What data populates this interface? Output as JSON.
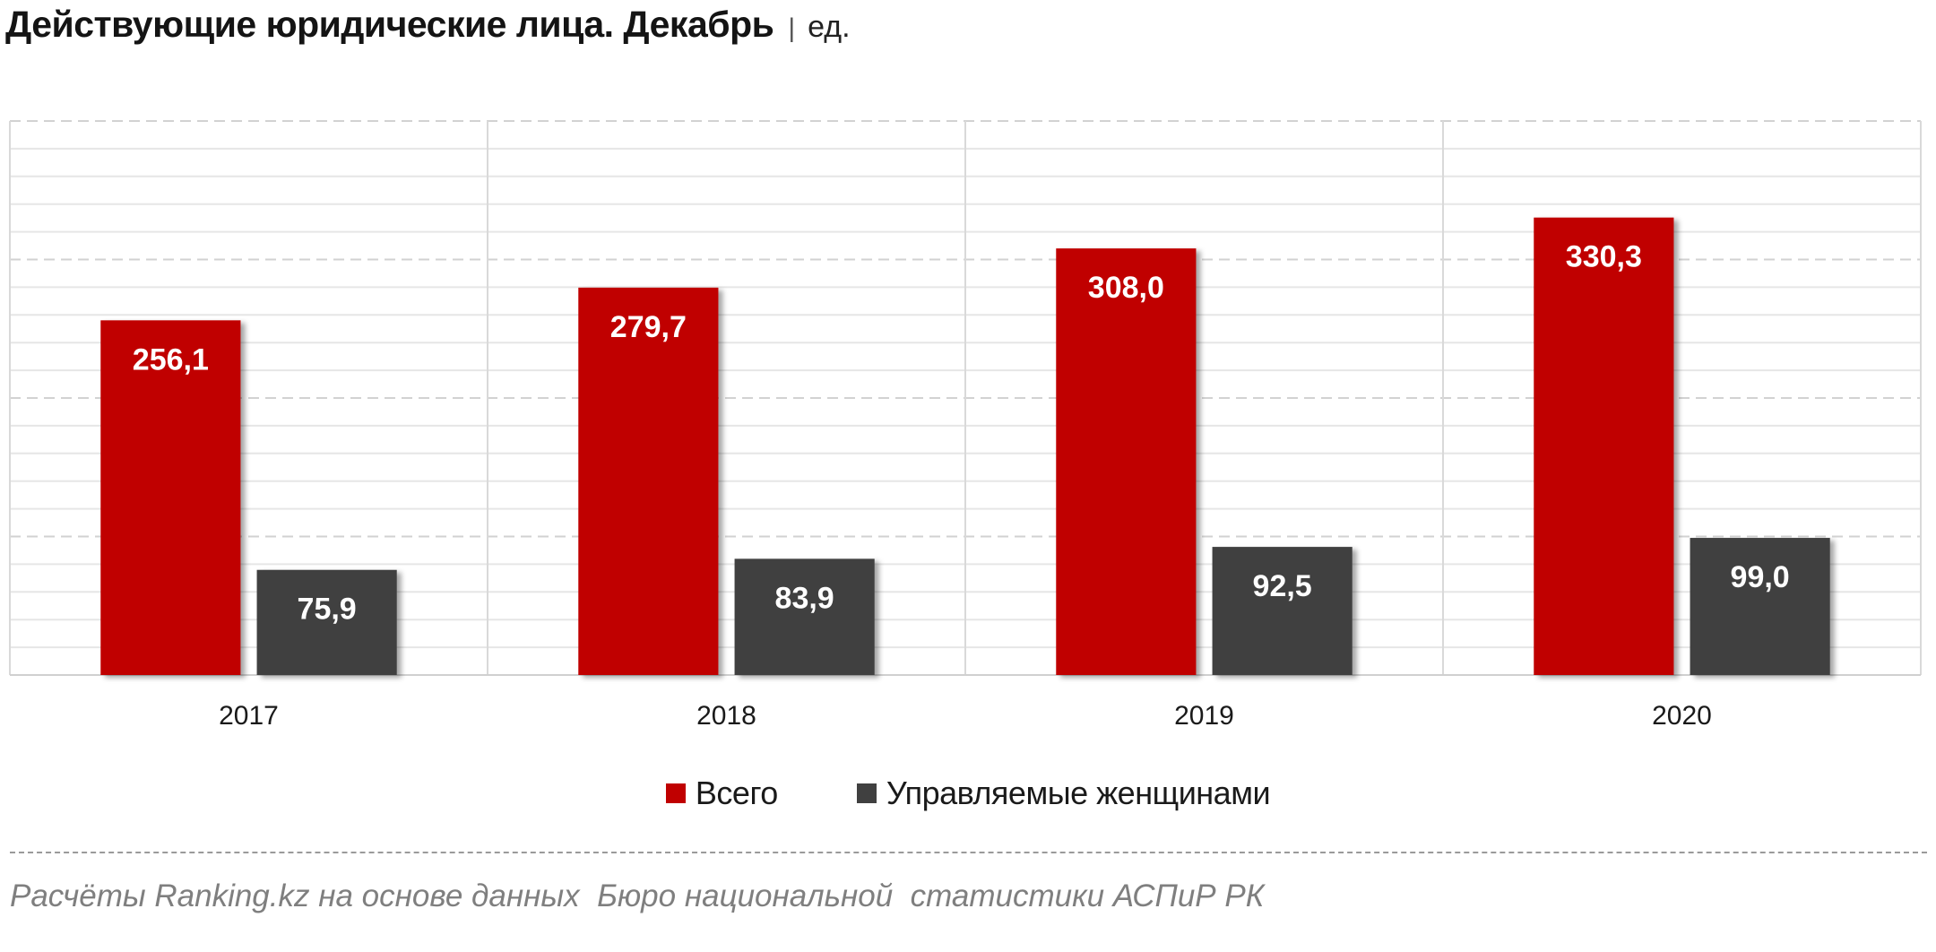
{
  "header": {
    "separator": "|"
  },
  "chart_data": {
    "type": "bar",
    "title": "Действующие юридические лица. Декабрь",
    "unit": "ед.",
    "categories": [
      "2017",
      "2018",
      "2019",
      "2020"
    ],
    "series": [
      {
        "name": "Всего",
        "color": "#c00000",
        "values": [
          256.1,
          279.7,
          308.0,
          330.3
        ],
        "data_labels": [
          "256,1",
          "279,7",
          "308,0",
          "330,3"
        ]
      },
      {
        "name": "Управляемые женщинами",
        "color": "#404040",
        "values": [
          75.9,
          83.9,
          92.5,
          99.0
        ],
        "data_labels": [
          "75,9",
          "83,9",
          "92,5",
          "99,0"
        ]
      }
    ],
    "xlabel": "",
    "ylabel": "",
    "ylim": [
      0,
      400
    ],
    "y_major_step": 100,
    "y_minor_step": 20,
    "grid": true,
    "legend": "bottom"
  },
  "footer": {
    "source": "Расчёты Ranking.kz на основе данных  Бюро национальной  статистики АСПиР РК"
  }
}
